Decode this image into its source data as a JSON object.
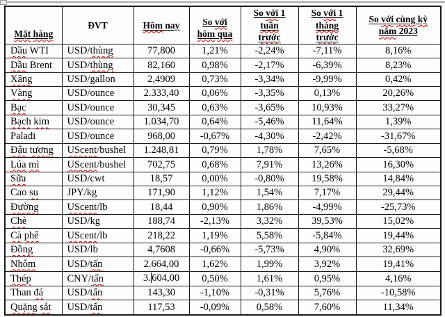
{
  "colors": {
    "spellcheck_red": "#cc0000",
    "table_border": "#1a1a1a",
    "text": "#000000"
  },
  "table": {
    "columns": [
      {
        "key": "item",
        "label": "Mặt hàng"
      },
      {
        "key": "unit",
        "label": "ĐVT"
      },
      {
        "key": "today",
        "label": "Hôm nay"
      },
      {
        "key": "vs_yesterday",
        "label": "So với\nhôm qua"
      },
      {
        "key": "vs_week",
        "label": "So với 1\ntuần\ntrước"
      },
      {
        "key": "vs_month",
        "label": "So với 1\ntháng\ntrước"
      },
      {
        "key": "vs_yoy_2023",
        "label": "So với cùng kỳ\nnăm 2023"
      }
    ],
    "rows": [
      [
        "Dầu WTI",
        "USD/thùng",
        "77,800",
        "1,21%",
        "-2,24%",
        "-7,11%",
        "8,16%"
      ],
      [
        "Dầu Brent",
        "USD/thùng",
        "82,160",
        "0,98%",
        "-2,17%",
        "-6,39%",
        "8,23%"
      ],
      [
        "Xăng",
        "USD/gallon",
        "2,4909",
        "0,73%",
        "-3,34%",
        "-9,99%",
        "0,42%"
      ],
      [
        "Vàng",
        "USD/ounce",
        "2.333,40",
        "0,06%",
        "-3,35%",
        "0,13%",
        "20,26%"
      ],
      [
        "Bạc",
        "USD/ounce",
        "30,345",
        "0,63%",
        "-3,65%",
        "10,93%",
        "33,27%"
      ],
      [
        "Bạch kim",
        "USD/ounce",
        "1.034,70",
        "0,64%",
        "-5,46%",
        "11,64%",
        "1,39%"
      ],
      [
        "Paladi",
        "USD/ounce",
        "968,00",
        "-0,67%",
        "-4,30%",
        "-2,42%",
        "-31,67%"
      ],
      [
        "Đậu tương",
        "UScent/bushel",
        "1.248,81",
        "0,79%",
        "1,78%",
        "7,65%",
        "-5,68%"
      ],
      [
        "Lúa mì",
        "UScent/bushel",
        "702,75",
        "0,68%",
        "7,91%",
        "13,26%",
        "16,30%"
      ],
      [
        "Sữa",
        "USD/cwt",
        "18,57",
        "0,00%",
        "-0,80%",
        "19,58%",
        "14,84%"
      ],
      [
        "Cao su",
        "JPY/kg",
        "171,90",
        "1,12%",
        "1,54%",
        "7,17%",
        "29,44%"
      ],
      [
        "Đường",
        "UScent/lb",
        "18,44",
        "0,90%",
        "1,86%",
        "-4,99%",
        "-25,73%"
      ],
      [
        "Chè",
        "USD/kg",
        "188,74",
        "-2,13%",
        "3,32%",
        "39,53%",
        "15,02%"
      ],
      [
        "Cà phê",
        "UScent/lb",
        "218,22",
        "1,19%",
        "5,58%",
        "-5,84%",
        "19,44%"
      ],
      [
        "Đồng",
        "USD/lb",
        "4,7608",
        "-0,66%",
        "-5,73%",
        "4,90%",
        "32,69%"
      ],
      [
        "Nhôm",
        "USD/tấn",
        "2.664,00",
        "1,62%",
        "1,99%",
        "3,92%",
        "19,41%"
      ],
      [
        "Thép",
        "CNY/tấn",
        "3.604,00",
        "0,50%",
        "1,61%",
        "0,95%",
        "4,16%"
      ],
      [
        "Than đá",
        "USD/tấn",
        "143,30",
        "-1,10%",
        "-0,31%",
        "5,76%",
        "-10,58%"
      ],
      [
        "Quặng sắt",
        "USD/tấn",
        "117,53",
        "-0,09%",
        "0,58%",
        "7,60%",
        "11,34%"
      ]
    ]
  },
  "spellcheck": {
    "words": [
      "Mặt",
      "hàng",
      "Hôm",
      "với",
      "hôm",
      "qua",
      "tuần",
      "trước",
      "tháng",
      "cùng",
      "kỳ",
      "năm",
      "Dầu",
      "Xăng",
      "Vàng",
      "Bạc",
      "Bạch",
      "kim",
      "Đậu",
      "tương",
      "Lúa",
      "mì",
      "Sữa",
      "su",
      "Đường",
      "Chè",
      "Cà",
      "phê",
      "Đồng",
      "Nhôm",
      "Thép",
      "đá",
      "Quặng",
      "sắt",
      "thùng",
      "UScent",
      "tấn"
    ]
  },
  "text_cursor": {
    "row_index": 16,
    "col_index": 2,
    "after_text": "3."
  }
}
